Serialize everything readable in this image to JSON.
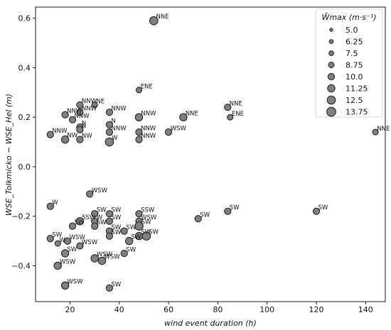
{
  "chart_data": {
    "type": "scatter",
    "xlabel": "wind event duration (h)",
    "ylabel": "WSE_Tolkmicko − WSE_Hel (m)",
    "xlim": [
      6,
      148
    ],
    "ylim": [
      -0.545,
      0.645
    ],
    "xticks": [
      20,
      40,
      60,
      80,
      100,
      120,
      140
    ],
    "yticks": [
      -0.4,
      -0.2,
      0.0,
      0.2,
      0.4,
      0.6
    ],
    "ytick_labels": [
      "−0.4",
      "−0.2",
      "0.0",
      "0.2",
      "0.4",
      "0.6"
    ],
    "grid": false,
    "legend": {
      "placement": "top-right",
      "title": "W̄max (m·s⁻¹)",
      "entries": [
        "5.0",
        "6.25",
        "7.5",
        "8.75",
        "10.0",
        "11.25",
        "12.5",
        "13.75"
      ],
      "sizes": [
        5.0,
        6.25,
        7.5,
        8.75,
        10.0,
        11.25,
        12.5,
        13.75
      ]
    },
    "points": [
      {
        "x": 54,
        "y": 0.59,
        "size": 12.5,
        "label": "NNE"
      },
      {
        "x": 48,
        "y": 0.31,
        "size": 8.75,
        "label": "ENE"
      },
      {
        "x": 84,
        "y": 0.24,
        "size": 10.0,
        "label": "NNE"
      },
      {
        "x": 85,
        "y": 0.2,
        "size": 8.75,
        "label": "ENE"
      },
      {
        "x": 144,
        "y": 0.14,
        "size": 8.75,
        "label": "NNE"
      },
      {
        "x": 24,
        "y": 0.25,
        "size": 10.0,
        "label": "NNW"
      },
      {
        "x": 30,
        "y": 0.25,
        "size": 8.75,
        "label": "NE"
      },
      {
        "x": 24,
        "y": 0.22,
        "size": 10.0,
        "label": "NNW"
      },
      {
        "x": 18,
        "y": 0.21,
        "size": 10.0,
        "label": "NNW"
      },
      {
        "x": 21,
        "y": 0.19,
        "size": 10.0,
        "label": "NNW"
      },
      {
        "x": 36,
        "y": 0.22,
        "size": 10.0,
        "label": "NNW"
      },
      {
        "x": 48,
        "y": 0.2,
        "size": 11.25,
        "label": "NNW"
      },
      {
        "x": 66,
        "y": 0.2,
        "size": 11.25,
        "label": "NNE"
      },
      {
        "x": 36,
        "y": 0.17,
        "size": 10.0,
        "label": "N"
      },
      {
        "x": 24,
        "y": 0.16,
        "size": 10.0,
        "label": "N"
      },
      {
        "x": 24,
        "y": 0.15,
        "size": 10.0,
        "label": "N"
      },
      {
        "x": 12,
        "y": 0.13,
        "size": 10.0,
        "label": "NNW"
      },
      {
        "x": 36,
        "y": 0.14,
        "size": 10.0,
        "label": "NNW"
      },
      {
        "x": 48,
        "y": 0.14,
        "size": 10.0,
        "label": "NNW"
      },
      {
        "x": 60,
        "y": 0.14,
        "size": 10.0,
        "label": "WSW"
      },
      {
        "x": 18,
        "y": 0.11,
        "size": 11.25,
        "label": "NW"
      },
      {
        "x": 24,
        "y": 0.11,
        "size": 10.0,
        "label": "NW"
      },
      {
        "x": 36,
        "y": 0.1,
        "size": 12.5,
        "label": "W"
      },
      {
        "x": 48,
        "y": 0.11,
        "size": 10.0,
        "label": "NNW"
      },
      {
        "x": 12,
        "y": -0.16,
        "size": 10.0,
        "label": "W"
      },
      {
        "x": 28,
        "y": -0.11,
        "size": 10.0,
        "label": "WSW"
      },
      {
        "x": 30,
        "y": -0.19,
        "size": 10.0,
        "label": "SW"
      },
      {
        "x": 36,
        "y": -0.19,
        "size": 10.0,
        "label": "SW"
      },
      {
        "x": 48,
        "y": -0.19,
        "size": 10.0,
        "label": "SSW"
      },
      {
        "x": 72,
        "y": -0.21,
        "size": 10.0,
        "label": "SW"
      },
      {
        "x": 84,
        "y": -0.18,
        "size": 10.0,
        "label": "SW"
      },
      {
        "x": 120,
        "y": -0.18,
        "size": 10.0,
        "label": "SW"
      },
      {
        "x": 24,
        "y": -0.22,
        "size": 11.25,
        "label": "SSW"
      },
      {
        "x": 30,
        "y": -0.22,
        "size": 10.0,
        "label": "W"
      },
      {
        "x": 36,
        "y": -0.22,
        "size": 10.0,
        "label": "SW"
      },
      {
        "x": 48,
        "y": -0.22,
        "size": 10.0,
        "label": "WSW"
      },
      {
        "x": 21,
        "y": -0.24,
        "size": 10.0,
        "label": "SW"
      },
      {
        "x": 30,
        "y": -0.24,
        "size": 10.0,
        "label": "SW"
      },
      {
        "x": 36,
        "y": -0.26,
        "size": 10.0,
        "label": "SW"
      },
      {
        "x": 42,
        "y": -0.26,
        "size": 10.0,
        "label": "SW"
      },
      {
        "x": 48,
        "y": -0.24,
        "size": 12.5,
        "label": "SW"
      },
      {
        "x": 12,
        "y": -0.29,
        "size": 10.0,
        "label": "SW"
      },
      {
        "x": 19,
        "y": -0.3,
        "size": 10.0,
        "label": "WSW"
      },
      {
        "x": 36,
        "y": -0.28,
        "size": 10.0,
        "label": "SW"
      },
      {
        "x": 48,
        "y": -0.28,
        "size": 11.25,
        "label": "SW"
      },
      {
        "x": 51,
        "y": -0.28,
        "size": 12.5,
        "label": "SW"
      },
      {
        "x": 15,
        "y": -0.31,
        "size": 8.75,
        "label": "W"
      },
      {
        "x": 24,
        "y": -0.32,
        "size": 10.0,
        "label": "WSW"
      },
      {
        "x": 44,
        "y": -0.3,
        "size": 11.25,
        "label": "SW"
      },
      {
        "x": 18,
        "y": -0.35,
        "size": 11.25,
        "label": "SW"
      },
      {
        "x": 30,
        "y": -0.37,
        "size": 11.25,
        "label": "WSW"
      },
      {
        "x": 33,
        "y": -0.38,
        "size": 11.25,
        "label": "WSW"
      },
      {
        "x": 42,
        "y": -0.35,
        "size": 10.0,
        "label": "SW"
      },
      {
        "x": 15,
        "y": -0.4,
        "size": 11.25,
        "label": "WSW"
      },
      {
        "x": 18,
        "y": -0.48,
        "size": 11.25,
        "label": "WSW"
      },
      {
        "x": 36,
        "y": -0.49,
        "size": 10.0,
        "label": "SW"
      }
    ]
  }
}
